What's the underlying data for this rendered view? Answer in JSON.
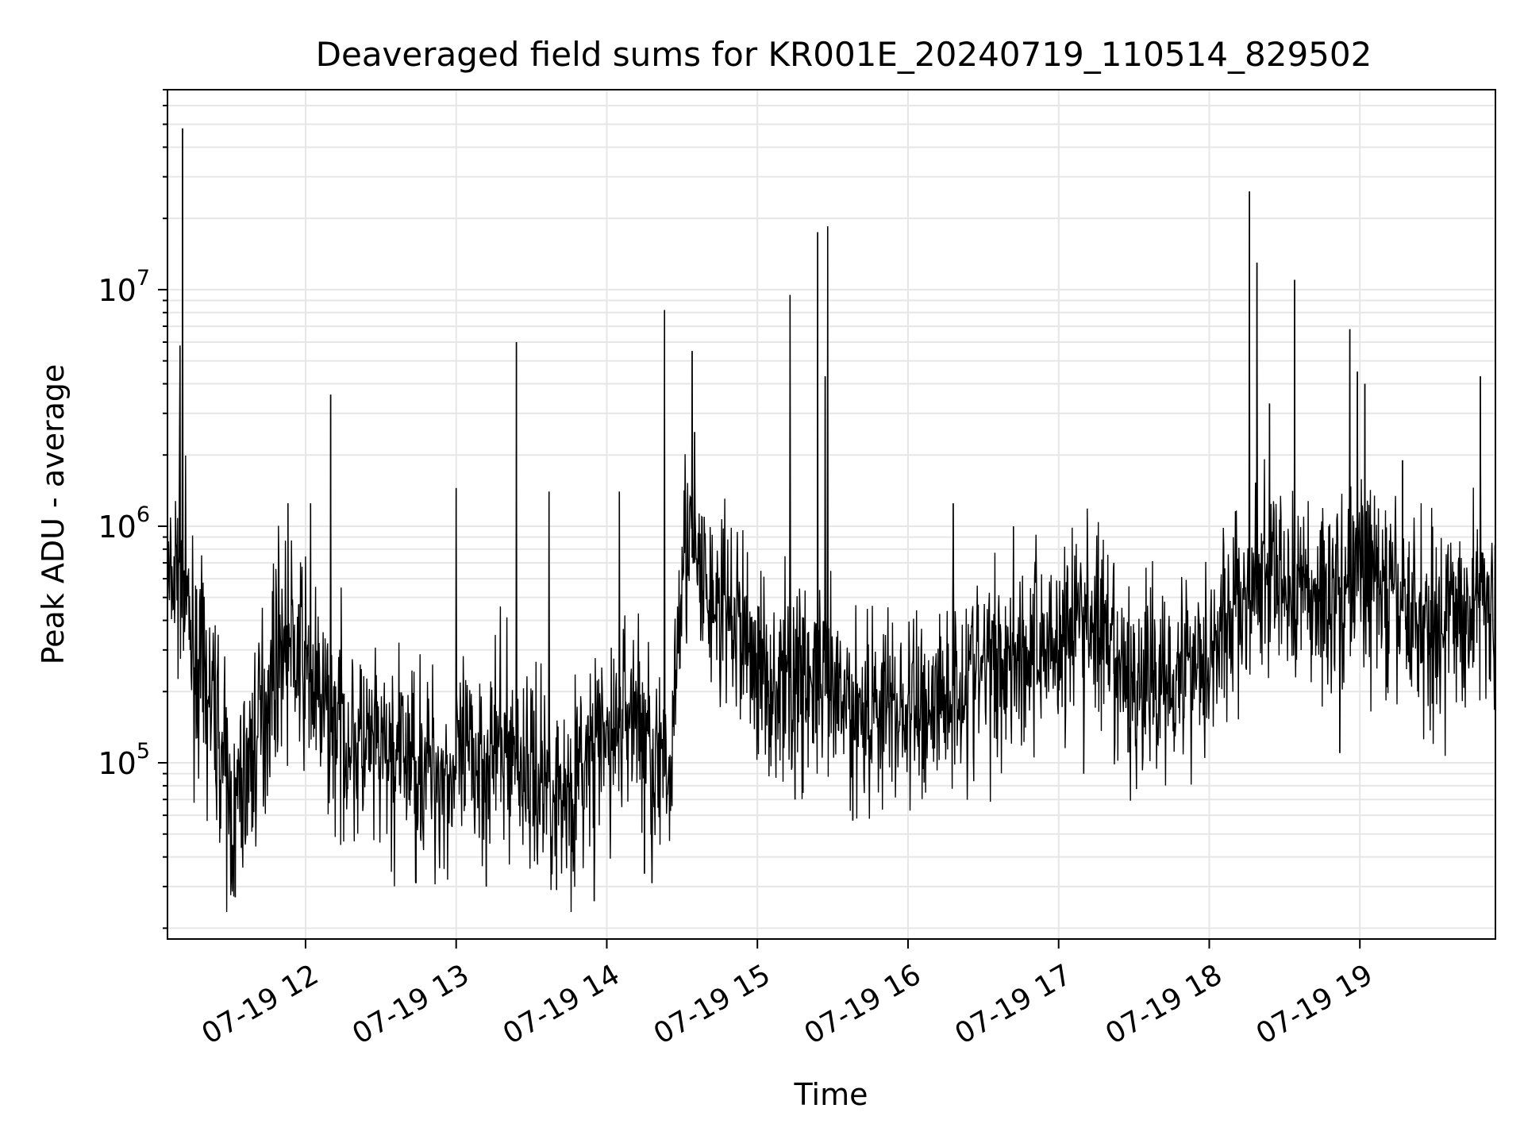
{
  "chart_data": {
    "type": "line",
    "title": "Deaveraged field sums for KR001E_20240719_110514_829502",
    "xlabel": "Time",
    "ylabel": "Peak ADU - average",
    "y_scale": "log",
    "grid": true,
    "line_color": "#000000",
    "grid_color": "#e6e6e6",
    "x_range": [
      "07-19 11:05",
      "07-19 19:54"
    ],
    "ylim": [
      18000,
      70000000
    ],
    "x_ticks": [
      {
        "label": "07-19 12",
        "value": "07-19 12:00"
      },
      {
        "label": "07-19 13",
        "value": "07-19 13:00"
      },
      {
        "label": "07-19 14",
        "value": "07-19 14:00"
      },
      {
        "label": "07-19 15",
        "value": "07-19 15:00"
      },
      {
        "label": "07-19 16",
        "value": "07-19 16:00"
      },
      {
        "label": "07-19 17",
        "value": "07-19 17:00"
      },
      {
        "label": "07-19 18",
        "value": "07-19 18:00"
      },
      {
        "label": "07-19 19",
        "value": "07-19 19:00"
      }
    ],
    "y_ticks": [
      {
        "base": "10",
        "exp": "5",
        "value": 100000
      },
      {
        "base": "10",
        "exp": "6",
        "value": 1000000
      },
      {
        "base": "10",
        "exp": "7",
        "value": 10000000
      }
    ],
    "series": [
      {
        "x": [
          "07-19 11:05",
          "07-19 11:10",
          "07-19 11:15",
          "07-19 11:20",
          "07-19 11:25",
          "07-19 11:30",
          "07-19 11:35",
          "07-19 11:40",
          "07-19 11:45",
          "07-19 11:50",
          "07-19 11:55",
          "07-19 12:00",
          "07-19 12:05",
          "07-19 12:10",
          "07-19 12:15",
          "07-19 12:20",
          "07-19 12:25",
          "07-19 12:30",
          "07-19 12:35",
          "07-19 12:40",
          "07-19 12:45",
          "07-19 12:50",
          "07-19 12:55",
          "07-19 13:00",
          "07-19 13:05",
          "07-19 13:10",
          "07-19 13:15",
          "07-19 13:20",
          "07-19 13:25",
          "07-19 13:30",
          "07-19 13:35",
          "07-19 13:40",
          "07-19 13:45",
          "07-19 13:50",
          "07-19 13:55",
          "07-19 14:00",
          "07-19 14:05",
          "07-19 14:10",
          "07-19 14:15",
          "07-19 14:20",
          "07-19 14:25",
          "07-19 14:30",
          "07-19 14:35",
          "07-19 14:40",
          "07-19 14:45",
          "07-19 14:50",
          "07-19 14:55",
          "07-19 15:00",
          "07-19 15:05",
          "07-19 15:10",
          "07-19 15:15",
          "07-19 15:20",
          "07-19 15:25",
          "07-19 15:30",
          "07-19 15:35",
          "07-19 15:40",
          "07-19 15:45",
          "07-19 15:50",
          "07-19 15:55",
          "07-19 16:00",
          "07-19 16:05",
          "07-19 16:10",
          "07-19 16:15",
          "07-19 16:20",
          "07-19 16:25",
          "07-19 16:30",
          "07-19 16:35",
          "07-19 16:40",
          "07-19 16:45",
          "07-19 16:50",
          "07-19 16:55",
          "07-19 17:00",
          "07-19 17:05",
          "07-19 17:10",
          "07-19 17:15",
          "07-19 17:20",
          "07-19 17:25",
          "07-19 17:30",
          "07-19 17:35",
          "07-19 17:40",
          "07-19 17:45",
          "07-19 17:50",
          "07-19 17:55",
          "07-19 18:00",
          "07-19 18:05",
          "07-19 18:10",
          "07-19 18:15",
          "07-19 18:20",
          "07-19 18:25",
          "07-19 18:30",
          "07-19 18:35",
          "07-19 18:40",
          "07-19 18:45",
          "07-19 18:50",
          "07-19 18:55",
          "07-19 19:00",
          "07-19 19:05",
          "07-19 19:10",
          "07-19 19:15",
          "07-19 19:20",
          "07-19 19:25",
          "07-19 19:30",
          "07-19 19:35",
          "07-19 19:40",
          "07-19 19:45",
          "07-19 19:50",
          "07-19 19:54"
        ],
        "baseline": [
          500000,
          700000,
          300000,
          200000,
          150000,
          60000,
          80000,
          120000,
          200000,
          350000,
          300000,
          250000,
          180000,
          150000,
          140000,
          120000,
          110000,
          105000,
          100000,
          110000,
          100000,
          95000,
          90000,
          90000,
          100000,
          110000,
          110000,
          120000,
          100000,
          90000,
          85000,
          80000,
          75000,
          90000,
          110000,
          120000,
          140000,
          180000,
          140000,
          100000,
          80000,
          900000,
          700000,
          500000,
          450000,
          400000,
          350000,
          250000,
          220000,
          200000,
          250000,
          220000,
          200000,
          180000,
          170000,
          180000,
          170000,
          180000,
          170000,
          160000,
          170000,
          180000,
          200000,
          220000,
          230000,
          250000,
          270000,
          280000,
          290000,
          300000,
          330000,
          320000,
          380000,
          420000,
          400000,
          250000,
          220000,
          210000,
          220000,
          230000,
          250000,
          260000,
          280000,
          300000,
          350000,
          450000,
          500000,
          550000,
          600000,
          550000,
          550000,
          500000,
          500000,
          520000,
          600000,
          650000,
          600000,
          500000,
          450000,
          420000,
          400000,
          380000,
          400000,
          430000,
          460000,
          500000,
          550000
        ]
      }
    ],
    "spikes": [
      {
        "x": "07-19 11:11",
        "y": 48000000
      },
      {
        "x": "07-19 11:10",
        "y": 5800000
      },
      {
        "x": "07-19 12:10",
        "y": 3600000
      },
      {
        "x": "07-19 11:53",
        "y": 1250000
      },
      {
        "x": "07-19 12:02",
        "y": 1250000
      },
      {
        "x": "07-19 13:00",
        "y": 1450000
      },
      {
        "x": "07-19 13:24",
        "y": 6000000
      },
      {
        "x": "07-19 13:37",
        "y": 1400000
      },
      {
        "x": "07-19 14:05",
        "y": 1400000
      },
      {
        "x": "07-19 14:23",
        "y": 8200000
      },
      {
        "x": "07-19 14:34",
        "y": 5500000
      },
      {
        "x": "07-19 14:35",
        "y": 2500000
      },
      {
        "x": "07-19 15:13",
        "y": 9500000
      },
      {
        "x": "07-19 15:24",
        "y": 17500000
      },
      {
        "x": "07-19 15:27",
        "y": 4300000
      },
      {
        "x": "07-19 15:28",
        "y": 18500000
      },
      {
        "x": "07-19 16:18",
        "y": 1250000
      },
      {
        "x": "07-19 16:42",
        "y": 1000000
      },
      {
        "x": "07-19 17:22",
        "y": 700000
      },
      {
        "x": "07-19 18:16",
        "y": 26000000
      },
      {
        "x": "07-19 18:19",
        "y": 13000000
      },
      {
        "x": "07-19 18:24",
        "y": 3300000
      },
      {
        "x": "07-19 18:34",
        "y": 11000000
      },
      {
        "x": "07-19 18:56",
        "y": 6800000
      },
      {
        "x": "07-19 18:59",
        "y": 4500000
      },
      {
        "x": "07-19 19:02",
        "y": 4000000
      },
      {
        "x": "07-19 19:17",
        "y": 1900000
      },
      {
        "x": "07-19 19:48",
        "y": 4300000
      }
    ],
    "dips": [
      {
        "x": "07-19 11:32",
        "y": 27000
      },
      {
        "x": "07-19 12:44",
        "y": 31000
      },
      {
        "x": "07-19 13:12",
        "y": 30000
      },
      {
        "x": "07-19 13:40",
        "y": 29000
      },
      {
        "x": "07-19 13:55",
        "y": 26000
      },
      {
        "x": "07-19 14:18",
        "y": 31000
      },
      {
        "x": "07-19 14:15",
        "y": 34000
      },
      {
        "x": "07-19 15:38",
        "y": 57000
      },
      {
        "x": "07-19 15:15",
        "y": 70000
      },
      {
        "x": "07-19 17:10",
        "y": 90000
      },
      {
        "x": "07-19 18:52",
        "y": 110000
      }
    ]
  }
}
